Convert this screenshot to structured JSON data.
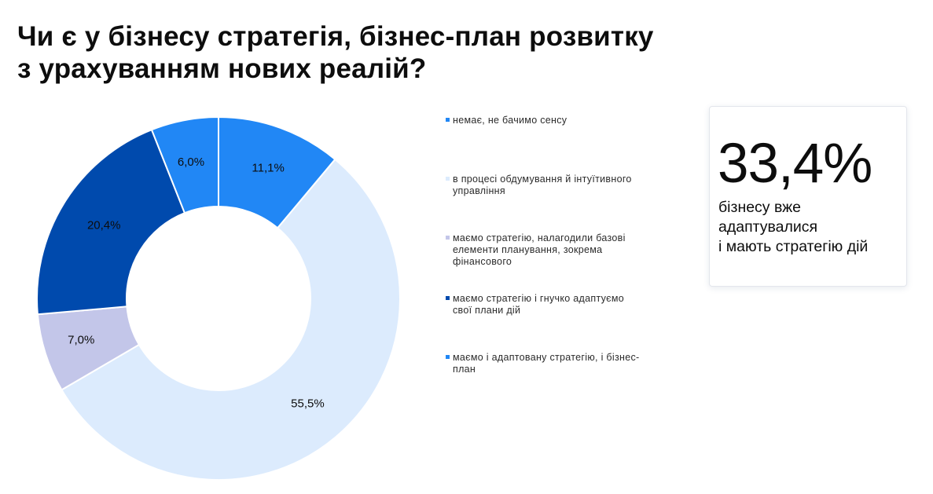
{
  "title": {
    "line1": "Чи є у бізнесу стратегія, бізнес-план розвитку",
    "line2": "з урахуванням нових реалій?"
  },
  "chart_data": {
    "type": "pie",
    "variant": "donut",
    "start_angle_deg": 0,
    "direction": "clockwise",
    "slices": [
      {
        "label": "немає, не бачимо сенсу",
        "legend_lines": [
          "немає, не бачимо сенсу"
        ],
        "value": 11.1,
        "display": "11,1%",
        "color": "#2187f5"
      },
      {
        "label": "в процесі обдумування й інтуїтивного управління",
        "legend_lines": [
          "в процесі обдумування й інтуїтивного",
          "управління"
        ],
        "value": 55.5,
        "display": "55,5%",
        "color": "#dcebfd"
      },
      {
        "label": "маємо стратегію, налагодили базові елементи планування, зокрема фінансового",
        "legend_lines": [
          "маємо стратегію, налагодили базові",
          "елементи планування, зокрема",
          "фінансового"
        ],
        "value": 7.0,
        "display": "7,0%",
        "color": "#c3c6e9"
      },
      {
        "label": "маємо стратегію і гнучко адаптуємо свої плани дій",
        "legend_lines": [
          "маємо стратегію і гнучко адаптуємо",
          "свої плани дій"
        ],
        "value": 20.4,
        "display": "20,4%",
        "color": "#004aad"
      },
      {
        "label": "маємо і адаптовану стратегію, і бізнес-план",
        "legend_lines": [
          "маємо і адаптовану стратегію, і бізнес-",
          "план"
        ],
        "value": 6.0,
        "display": "6,0%",
        "color": "#2187f5"
      }
    ],
    "legend_position": "right"
  },
  "callout": {
    "value": "33,4%",
    "lines": [
      "бізнесу вже",
      "адаптувалися",
      "і мають стратегію дій"
    ]
  }
}
